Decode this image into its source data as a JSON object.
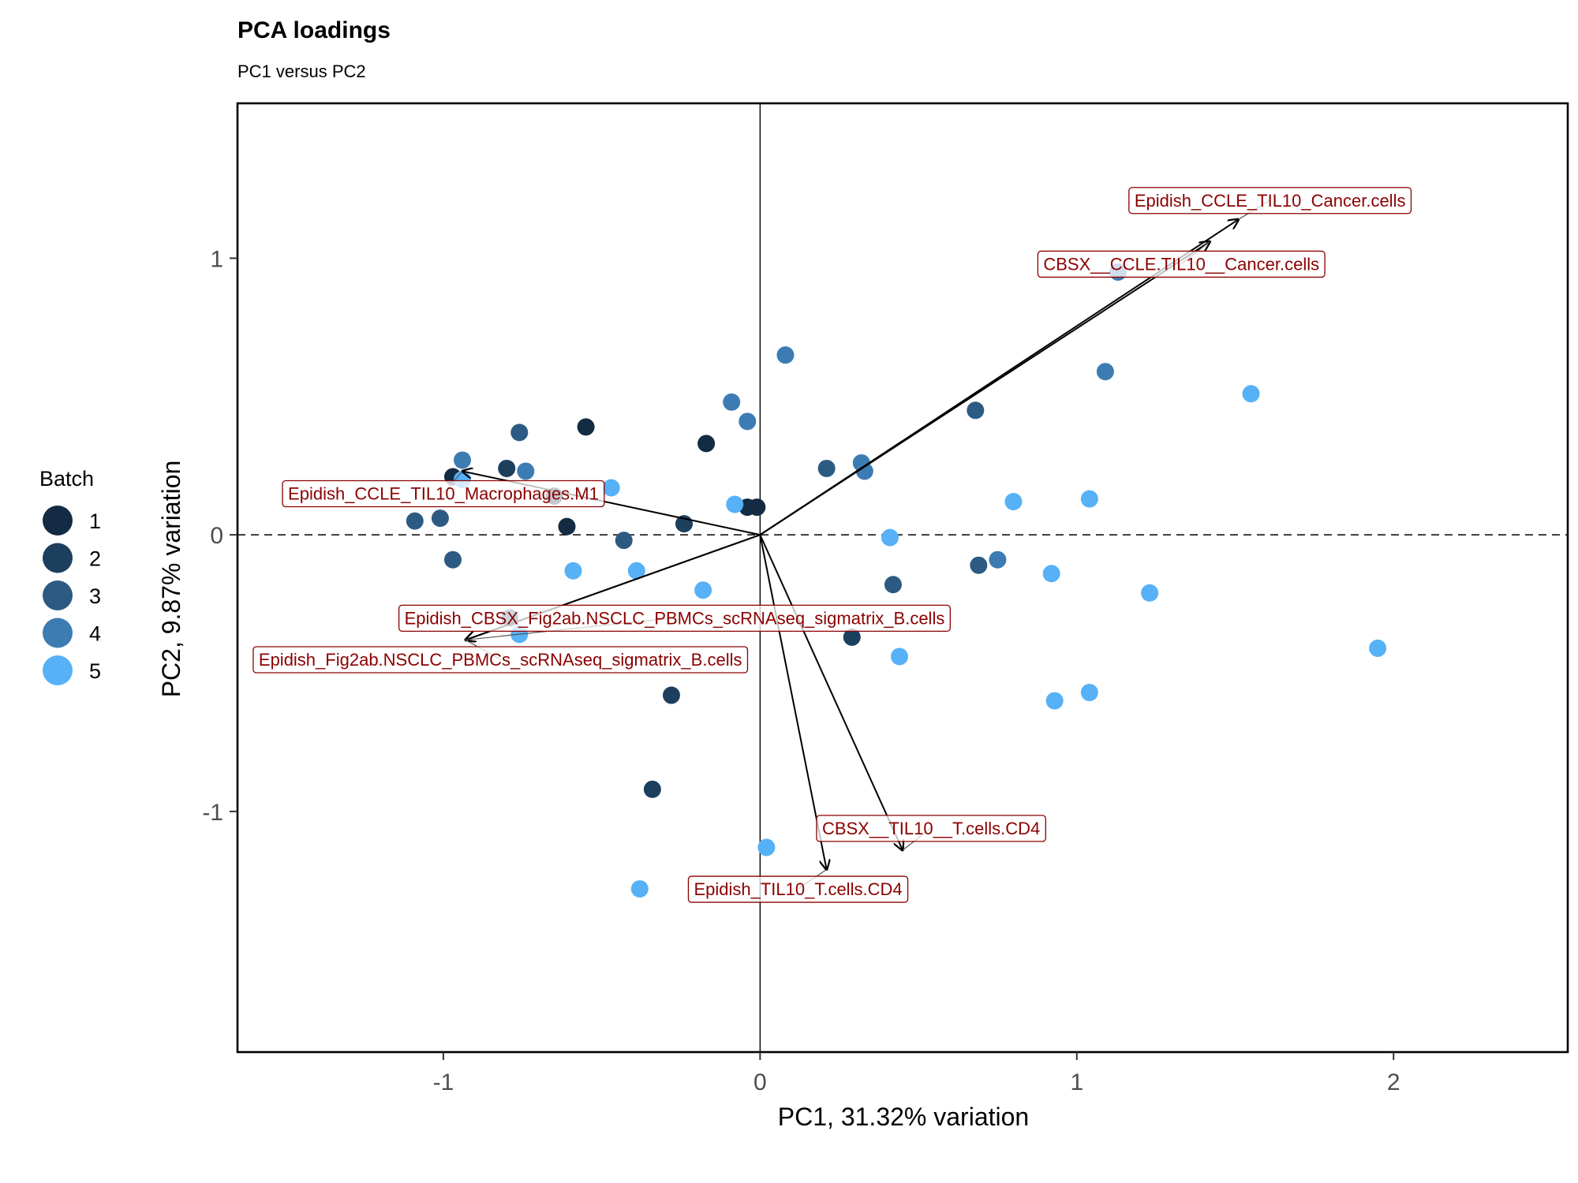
{
  "chart_data": {
    "type": "scatter",
    "title": "PCA loadings",
    "subtitle": "PC1 versus PC2",
    "xlabel": "PC1, 31.32% variation",
    "ylabel": "PC2, 9.87% variation",
    "xlim": [
      -1.65,
      2.55
    ],
    "ylim": [
      -1.87,
      1.56
    ],
    "x_ticks": [
      -1,
      0,
      1,
      2
    ],
    "y_ticks": [
      -1,
      0,
      1
    ],
    "x_tick_labels": [
      "-1",
      "0",
      "1",
      "2"
    ],
    "y_tick_labels": [
      "-1",
      "0",
      "1"
    ],
    "grid": false,
    "reference_lines": {
      "vertical_x": 0,
      "horizontal_y": 0,
      "horizontal_style": "dashed"
    },
    "legend": {
      "title": "Batch",
      "placement": "left",
      "entries": [
        {
          "label": "1",
          "color": "#132B43"
        },
        {
          "label": "2",
          "color": "#1D3F5E"
        },
        {
          "label": "3",
          "color": "#2D5A82"
        },
        {
          "label": "4",
          "color": "#3D7CB3"
        },
        {
          "label": "5",
          "color": "#56B1F7"
        }
      ]
    },
    "colors": {
      "loading_text": "#8B0000",
      "loading_border": "#8B0000",
      "arrow": "#000000"
    },
    "points": [
      {
        "x": -0.97,
        "y": 0.21,
        "batch": 1
      },
      {
        "x": -0.55,
        "y": 0.39,
        "batch": 1
      },
      {
        "x": -0.17,
        "y": 0.33,
        "batch": 1
      },
      {
        "x": -0.61,
        "y": 0.03,
        "batch": 1
      },
      {
        "x": -0.65,
        "y": 0.14,
        "batch": 1
      },
      {
        "x": -0.01,
        "y": 0.1,
        "batch": 1
      },
      {
        "x": -0.04,
        "y": 0.1,
        "batch": 1
      },
      {
        "x": -0.8,
        "y": 0.24,
        "batch": 2
      },
      {
        "x": -0.24,
        "y": 0.04,
        "batch": 2
      },
      {
        "x": -0.28,
        "y": -0.58,
        "batch": 2
      },
      {
        "x": -0.34,
        "y": -0.92,
        "batch": 2
      },
      {
        "x": 0.29,
        "y": -0.37,
        "batch": 2
      },
      {
        "x": -1.09,
        "y": 0.05,
        "batch": 3
      },
      {
        "x": -1.01,
        "y": 0.06,
        "batch": 3
      },
      {
        "x": -0.97,
        "y": -0.09,
        "batch": 3
      },
      {
        "x": -0.76,
        "y": 0.37,
        "batch": 3
      },
      {
        "x": -0.43,
        "y": -0.02,
        "batch": 3
      },
      {
        "x": 0.68,
        "y": 0.45,
        "batch": 3
      },
      {
        "x": 0.69,
        "y": -0.11,
        "batch": 3
      },
      {
        "x": 0.42,
        "y": -0.18,
        "batch": 3
      },
      {
        "x": -0.79,
        "y": -0.3,
        "batch": 3
      },
      {
        "x": 0.21,
        "y": 0.24,
        "batch": 3
      },
      {
        "x": -0.04,
        "y": 0.41,
        "batch": 4
      },
      {
        "x": -0.09,
        "y": 0.48,
        "batch": 4
      },
      {
        "x": 0.08,
        "y": 0.65,
        "batch": 4
      },
      {
        "x": 0.32,
        "y": 0.26,
        "batch": 4
      },
      {
        "x": 0.33,
        "y": 0.23,
        "batch": 4
      },
      {
        "x": -0.94,
        "y": 0.27,
        "batch": 4
      },
      {
        "x": -0.74,
        "y": 0.23,
        "batch": 4
      },
      {
        "x": 1.09,
        "y": 0.59,
        "batch": 4
      },
      {
        "x": 1.13,
        "y": 0.95,
        "batch": 4
      },
      {
        "x": 0.75,
        "y": -0.09,
        "batch": 4
      },
      {
        "x": -0.47,
        "y": 0.17,
        "batch": 5
      },
      {
        "x": -0.08,
        "y": 0.11,
        "batch": 5
      },
      {
        "x": -0.59,
        "y": -0.13,
        "batch": 5
      },
      {
        "x": -0.39,
        "y": -0.13,
        "batch": 5
      },
      {
        "x": -0.18,
        "y": -0.2,
        "batch": 5
      },
      {
        "x": -0.76,
        "y": -0.36,
        "batch": 5
      },
      {
        "x": 0.41,
        "y": -0.01,
        "batch": 5
      },
      {
        "x": 0.44,
        "y": -0.44,
        "batch": 5
      },
      {
        "x": 0.8,
        "y": 0.12,
        "batch": 5
      },
      {
        "x": 1.04,
        "y": 0.13,
        "batch": 5
      },
      {
        "x": 0.92,
        "y": -0.14,
        "batch": 5
      },
      {
        "x": 1.23,
        "y": -0.21,
        "batch": 5
      },
      {
        "x": 1.55,
        "y": 0.51,
        "batch": 5
      },
      {
        "x": 1.95,
        "y": -0.41,
        "batch": 5
      },
      {
        "x": 0.93,
        "y": -0.6,
        "batch": 5
      },
      {
        "x": 1.04,
        "y": -0.57,
        "batch": 5
      },
      {
        "x": 0.02,
        "y": -1.13,
        "batch": 5
      },
      {
        "x": -0.38,
        "y": -1.28,
        "batch": 5
      },
      {
        "x": -0.94,
        "y": 0.2,
        "batch": 5
      }
    ],
    "loadings": [
      {
        "name": "Epidish_CCLE_TIL10_Cancer.cells",
        "x": 1.51,
        "y": 1.14,
        "label_x": 1.61,
        "label_y": 1.21
      },
      {
        "name": "CBSX__CCLE.TIL10__Cancer.cells",
        "x": 1.42,
        "y": 1.06,
        "label_x": 1.33,
        "label_y": 0.98
      },
      {
        "name": "Epidish_CCLE_TIL10_Macrophages.M1",
        "x": -0.94,
        "y": 0.23,
        "label_x": -1.0,
        "label_y": 0.15
      },
      {
        "name": "Epidish_CBSX_Fig2ab.NSCLC_PBMCs_scRNAseq_sigmatrix_B.cells",
        "x": -0.93,
        "y": -0.38,
        "label_x": -0.27,
        "label_y": -0.3
      },
      {
        "name": "Epidish_Fig2ab.NSCLC_PBMCs_scRNAseq_sigmatrix_B.cells",
        "x": -0.93,
        "y": -0.38,
        "label_x": -0.82,
        "label_y": -0.45
      },
      {
        "name": "CBSX__TIL10__T.cells.CD4",
        "x": 0.45,
        "y": -1.14,
        "label_x": 0.54,
        "label_y": -1.06
      },
      {
        "name": "Epidish_TIL10_T.cells.CD4",
        "x": 0.21,
        "y": -1.21,
        "label_x": 0.12,
        "label_y": -1.28
      }
    ]
  }
}
